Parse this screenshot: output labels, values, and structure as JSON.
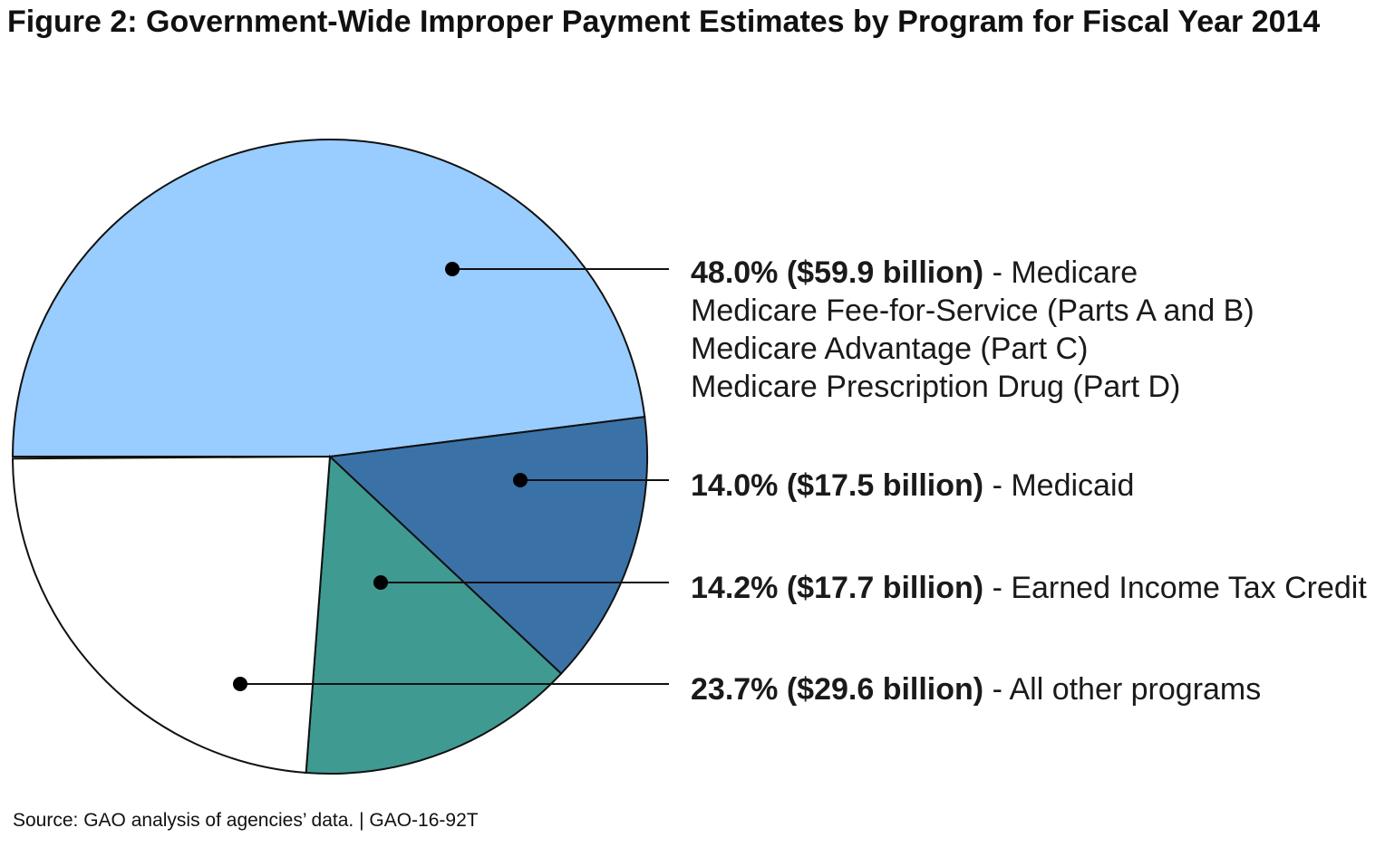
{
  "chart_data": {
    "type": "pie",
    "title": "Figure 2: Government-Wide Improper Payment Estimates by Program for Fiscal Year 2014",
    "slices": [
      {
        "name": "Medicare",
        "percent": 48.0,
        "amount": "$59.9 billion",
        "label_bold": "48.0% ($59.9 billion)",
        "label_rest": " - Medicare",
        "sub": [
          "Medicare Fee-for-Service (Parts A and B)",
          "Medicare Advantage (Part C)",
          "Medicare Prescription Drug (Part D)"
        ],
        "color": "#99ccff"
      },
      {
        "name": "Medicaid",
        "percent": 14.0,
        "amount": "$17.5 billion",
        "label_bold": "14.0% ($17.5 billion)",
        "label_rest": " - Medicaid",
        "sub": [],
        "color": "#3a72a8"
      },
      {
        "name": "Earned Income Tax Credit",
        "percent": 14.2,
        "amount": "$17.7 billion",
        "label_bold": "14.2% ($17.7 billion)",
        "label_rest": " - Earned Income Tax Credit",
        "sub": [],
        "color": "#3f9a92"
      },
      {
        "name": "All other programs",
        "percent": 23.7,
        "amount": "$29.6 billion",
        "label_bold": "23.7% ($29.6 billion)",
        "label_rest": " - All other programs",
        "sub": [],
        "color": "#ffffff"
      }
    ],
    "source": "Source: GAO analysis of agencies’ data. | GAO-16-92T"
  }
}
